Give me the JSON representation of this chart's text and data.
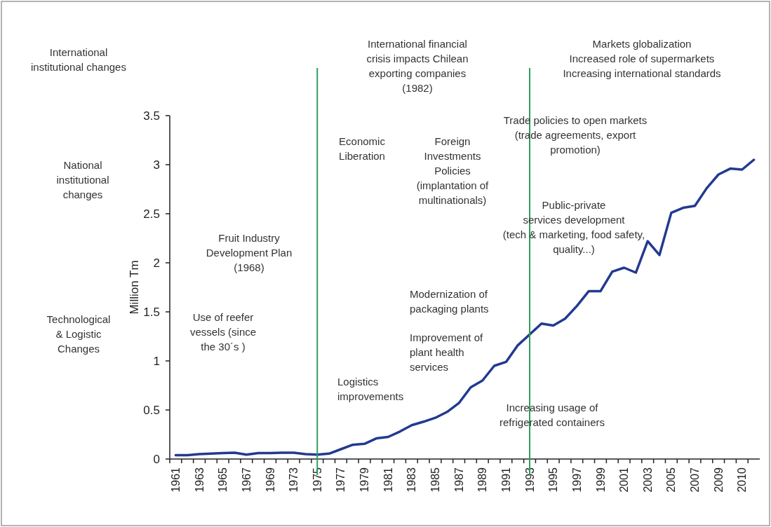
{
  "chart_data": {
    "type": "line",
    "ylabel": "Million  Tm",
    "categories": [
      "1961",
      null,
      "1963",
      null,
      "1965",
      null,
      "1967",
      null,
      "1969",
      null,
      "1973",
      null,
      "1975",
      null,
      "1977",
      null,
      "1979",
      null,
      "1981",
      null,
      "1983",
      null,
      "1985",
      null,
      "1987",
      null,
      "1989",
      null,
      "1991",
      null,
      "1993",
      null,
      "1995",
      null,
      "1997",
      null,
      "1999",
      null,
      "2001",
      null,
      "2003",
      null,
      "2005",
      null,
      "2007",
      null,
      "2009",
      null,
      "2010",
      null
    ],
    "series": [
      {
        "color": "#223a90",
        "values": [
          0.04,
          0.04,
          0.05,
          0.055,
          0.06,
          0.065,
          0.045,
          0.06,
          0.06,
          0.065,
          0.065,
          0.05,
          0.045,
          0.055,
          0.1,
          0.145,
          0.155,
          0.21,
          0.225,
          0.28,
          0.345,
          0.38,
          0.42,
          0.48,
          0.57,
          0.73,
          0.8,
          0.95,
          0.99,
          1.16,
          1.27,
          1.38,
          1.36,
          1.43,
          1.56,
          1.71,
          1.71,
          1.91,
          1.95,
          1.9,
          2.22,
          2.08,
          2.51,
          2.56,
          2.58,
          2.76,
          2.9,
          2.96,
          2.95,
          3.05
        ]
      }
    ],
    "ylim": [
      0,
      3.5
    ],
    "yticks": [
      0,
      0.5,
      1,
      1.5,
      2,
      2.5,
      3,
      3.5
    ],
    "grid": false,
    "marker": "none",
    "line_style": "solid",
    "ref_lines": [
      {
        "axis": "x",
        "value": "1975",
        "color": "#2e9e5b"
      },
      {
        "axis": "x",
        "value": "1993",
        "color": "#2e9e5b"
      }
    ],
    "annotations": [
      "International\ninstitutional changes",
      "National\ninstitutional\nchanges",
      "Technological\n& Logistic\nChanges",
      "International financial\ncrisis impacts Chilean\nexporting companies\n(1982)",
      "Markets globalization\nIncreased role of  supermarkets\nIncreasing international standards",
      "Trade policies to open markets\n(trade agreements,  export\npromotion)",
      "Economic\nLiberation",
      "Foreign\nInvestments\nPolicies\n(implantation of\nmultinationals)",
      "Fruit Industry\nDevelopment Plan\n(1968)",
      "Use of reefer\nvessels (since\nthe 30´s )",
      "Modernization of\npackaging plants",
      "Improvement of\nplant health\nservices",
      "Logistics\nimprovements",
      "Public-private\nservices development\n(tech & marketing, food safety,\nquality...)",
      "Increasing  usage of\nrefrigerated containers"
    ]
  }
}
